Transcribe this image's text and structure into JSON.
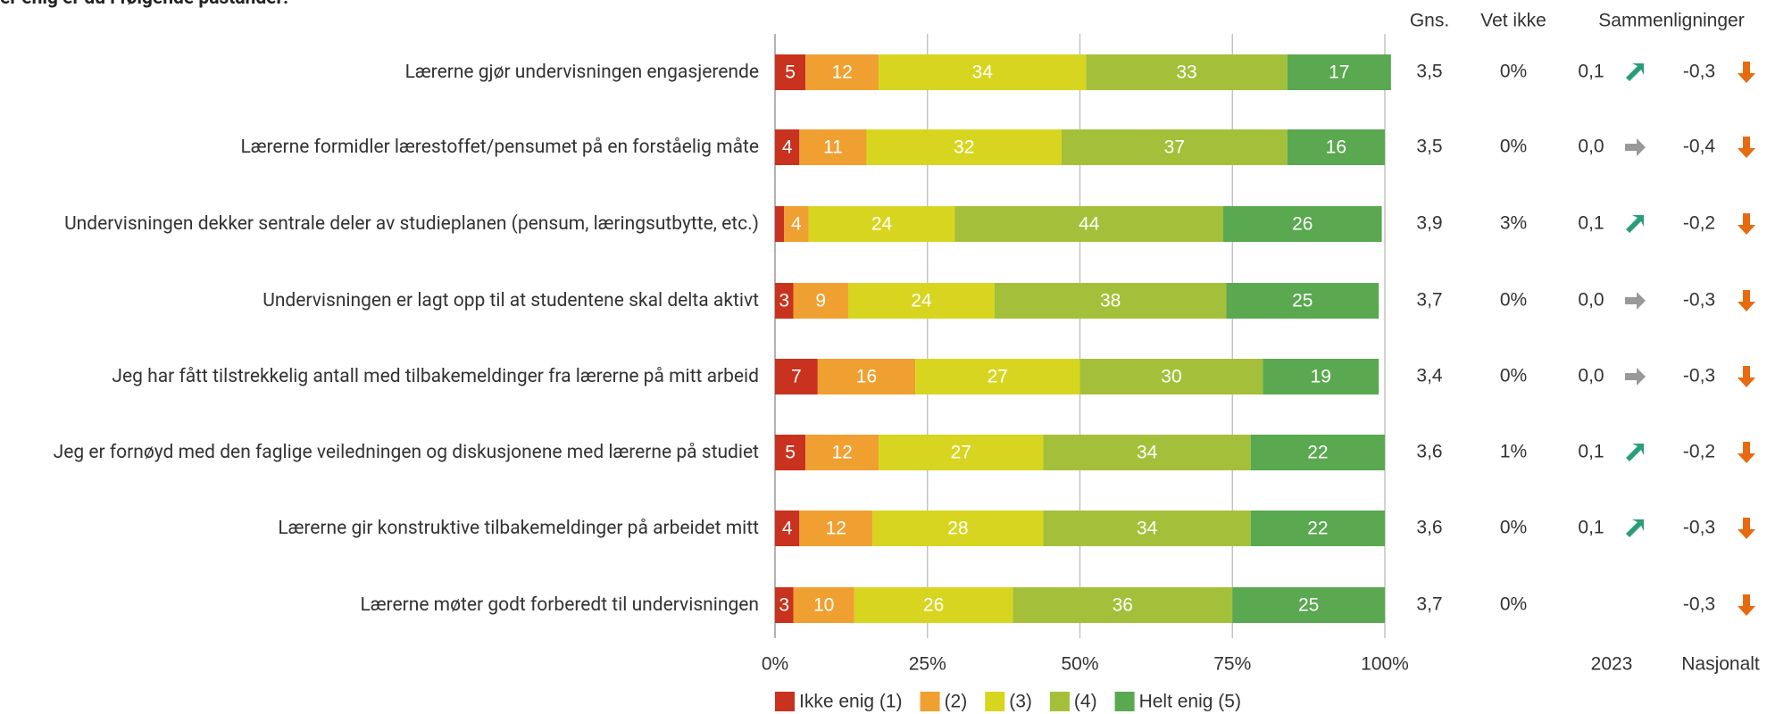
{
  "chart_data": {
    "type": "stacked-bar-horizontal",
    "title": "er enig er du i følgende påstander:",
    "categories": [
      "Lærerne gjør undervisningen engasjerende",
      "Lærerne formidler lærestoffet/pensumet på en forståelig måte",
      "Undervisningen dekker sentrale deler av studieplanen (pensum, læringsutbytte, etc.)",
      "Undervisningen er lagt opp til at studentene skal delta aktivt",
      "Jeg har fått tilstrekkelig antall med tilbakemeldinger fra lærerne på mitt arbeid",
      "Jeg er fornøyd med den faglige veiledningen og diskusjonene med lærerne på studiet",
      "Lærerne gir konstruktive tilbakemeldinger på arbeidet mitt",
      "Lærerne møter godt forberedt til undervisningen"
    ],
    "series": [
      {
        "name": "Ikke enig (1)",
        "color": "#c8321e",
        "values": [
          5,
          4,
          1.5,
          3,
          7,
          5,
          4,
          3
        ],
        "value_labels": [
          "5",
          "4",
          null,
          "3",
          "7",
          "5",
          "4",
          "3"
        ]
      },
      {
        "name": "(2)",
        "color": "#f0a030",
        "values": [
          12,
          11,
          4,
          9,
          16,
          12,
          12,
          10
        ]
      },
      {
        "name": "(3)",
        "color": "#d8d520",
        "values": [
          34,
          32,
          24,
          24,
          27,
          27,
          28,
          26
        ]
      },
      {
        "name": "(4)",
        "color": "#a4c03a",
        "values": [
          33,
          37,
          44,
          38,
          30,
          34,
          34,
          36
        ]
      },
      {
        "name": "Helt enig (5)",
        "color": "#5aa850",
        "values": [
          17,
          16,
          26,
          25,
          19,
          22,
          22,
          25
        ]
      }
    ],
    "xlim": [
      0,
      100
    ],
    "xticks": [
      {
        "value": 0,
        "label": "0%"
      },
      {
        "value": 25,
        "label": "25%"
      },
      {
        "value": 50,
        "label": "50%"
      },
      {
        "value": 75,
        "label": "75%"
      },
      {
        "value": 100,
        "label": "100%"
      }
    ],
    "grid": true,
    "legend": "bottom",
    "columns": {
      "mean": {
        "header": "Gns.",
        "values": [
          "3,5",
          "3,5",
          "3,9",
          "3,7",
          "3,4",
          "3,6",
          "3,6",
          "3,7"
        ]
      },
      "unknown": {
        "header": "Vet ikke",
        "values": [
          "0%",
          "0%",
          "3%",
          "0%",
          "0%",
          "1%",
          "0%",
          "0%"
        ]
      },
      "comparisons": {
        "header": "Sammenligninger",
        "year": {
          "footer": "2023",
          "values": [
            "0,1",
            "0,0",
            "0,1",
            "0,0",
            "0,0",
            "0,1",
            "0,1",
            null
          ],
          "trend": [
            "up",
            "flat",
            "up",
            "flat",
            "flat",
            "up",
            "up",
            null
          ]
        },
        "national": {
          "footer": "Nasjonalt",
          "values": [
            "-0,3",
            "-0,4",
            "-0,2",
            "-0,3",
            "-0,3",
            "-0,2",
            "-0,3",
            "-0,3"
          ],
          "trend": [
            "down",
            "down",
            "down",
            "down",
            "down",
            "down",
            "down",
            "down"
          ]
        }
      }
    }
  }
}
